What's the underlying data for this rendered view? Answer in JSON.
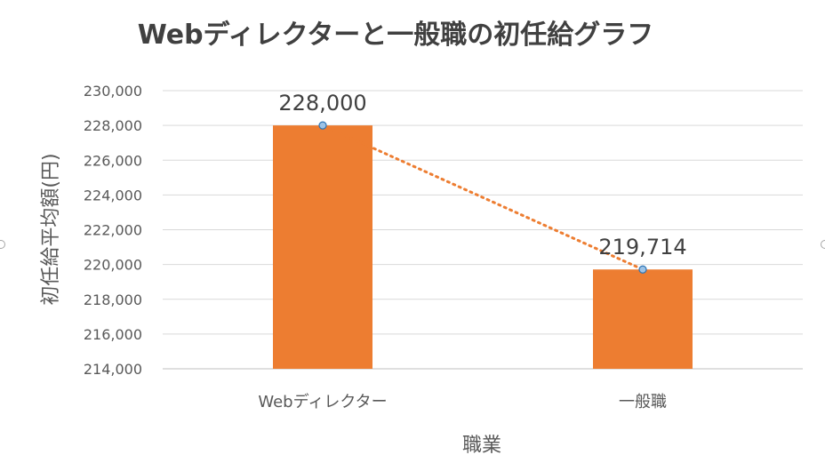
{
  "chart_data": {
    "type": "bar",
    "title": "Webディレクターと一般職の初任給グラフ",
    "xlabel": "職業",
    "ylabel": "初任給平均額(円)",
    "categories": [
      "Webディレクター",
      "一般職"
    ],
    "values": [
      228000,
      219714
    ],
    "data_labels": [
      "228,000",
      "219,714"
    ],
    "ylim": [
      214000,
      230000
    ],
    "yticks": [
      214000,
      216000,
      218000,
      220000,
      222000,
      224000,
      226000,
      228000,
      230000
    ],
    "ytick_labels": [
      "214,000",
      "216,000",
      "218,000",
      "220,000",
      "222,000",
      "224,000",
      "226,000",
      "228,000",
      "230,000"
    ],
    "grid": true,
    "legend": "none",
    "overlay": "dotted trend line connecting bar tops",
    "colors": {
      "bar": "#ED7D31",
      "trend_line": "#ED7D31",
      "marker_fill": "#9DC3E6",
      "marker_stroke": "#2E75B6",
      "gridline": "#D9D9D9",
      "axis_line": "#BFBFBF"
    }
  }
}
